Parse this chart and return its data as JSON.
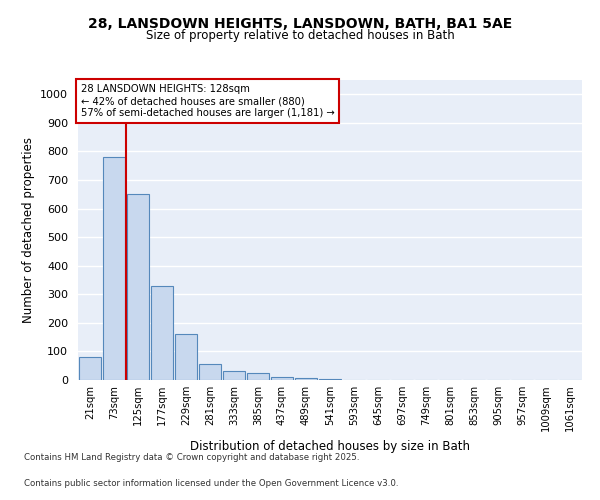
{
  "title_line1": "28, LANSDOWN HEIGHTS, LANSDOWN, BATH, BA1 5AE",
  "title_line2": "Size of property relative to detached houses in Bath",
  "xlabel": "Distribution of detached houses by size in Bath",
  "ylabel": "Number of detached properties",
  "bar_color": "#c8d8ee",
  "bar_edge_color": "#5588bb",
  "background_color": "#e8eef8",
  "grid_color": "#ffffff",
  "annotation_box_color": "#cc0000",
  "vline_color": "#cc0000",
  "categories": [
    "21sqm",
    "73sqm",
    "125sqm",
    "177sqm",
    "229sqm",
    "281sqm",
    "333sqm",
    "385sqm",
    "437sqm",
    "489sqm",
    "541sqm",
    "593sqm",
    "645sqm",
    "697sqm",
    "749sqm",
    "801sqm",
    "853sqm",
    "905sqm",
    "957sqm",
    "1009sqm",
    "1061sqm"
  ],
  "values": [
    80,
    780,
    650,
    330,
    160,
    55,
    30,
    25,
    12,
    7,
    3,
    0,
    0,
    0,
    0,
    0,
    0,
    0,
    0,
    0,
    0
  ],
  "ylim": [
    0,
    1050
  ],
  "yticks": [
    0,
    100,
    200,
    300,
    400,
    500,
    600,
    700,
    800,
    900,
    1000
  ],
  "vline_x": 1.5,
  "annotation_text": "28 LANSDOWN HEIGHTS: 128sqm\n← 42% of detached houses are smaller (880)\n57% of semi-detached houses are larger (1,181) →",
  "footnote_line1": "Contains HM Land Registry data © Crown copyright and database right 2025.",
  "footnote_line2": "Contains public sector information licensed under the Open Government Licence v3.0."
}
